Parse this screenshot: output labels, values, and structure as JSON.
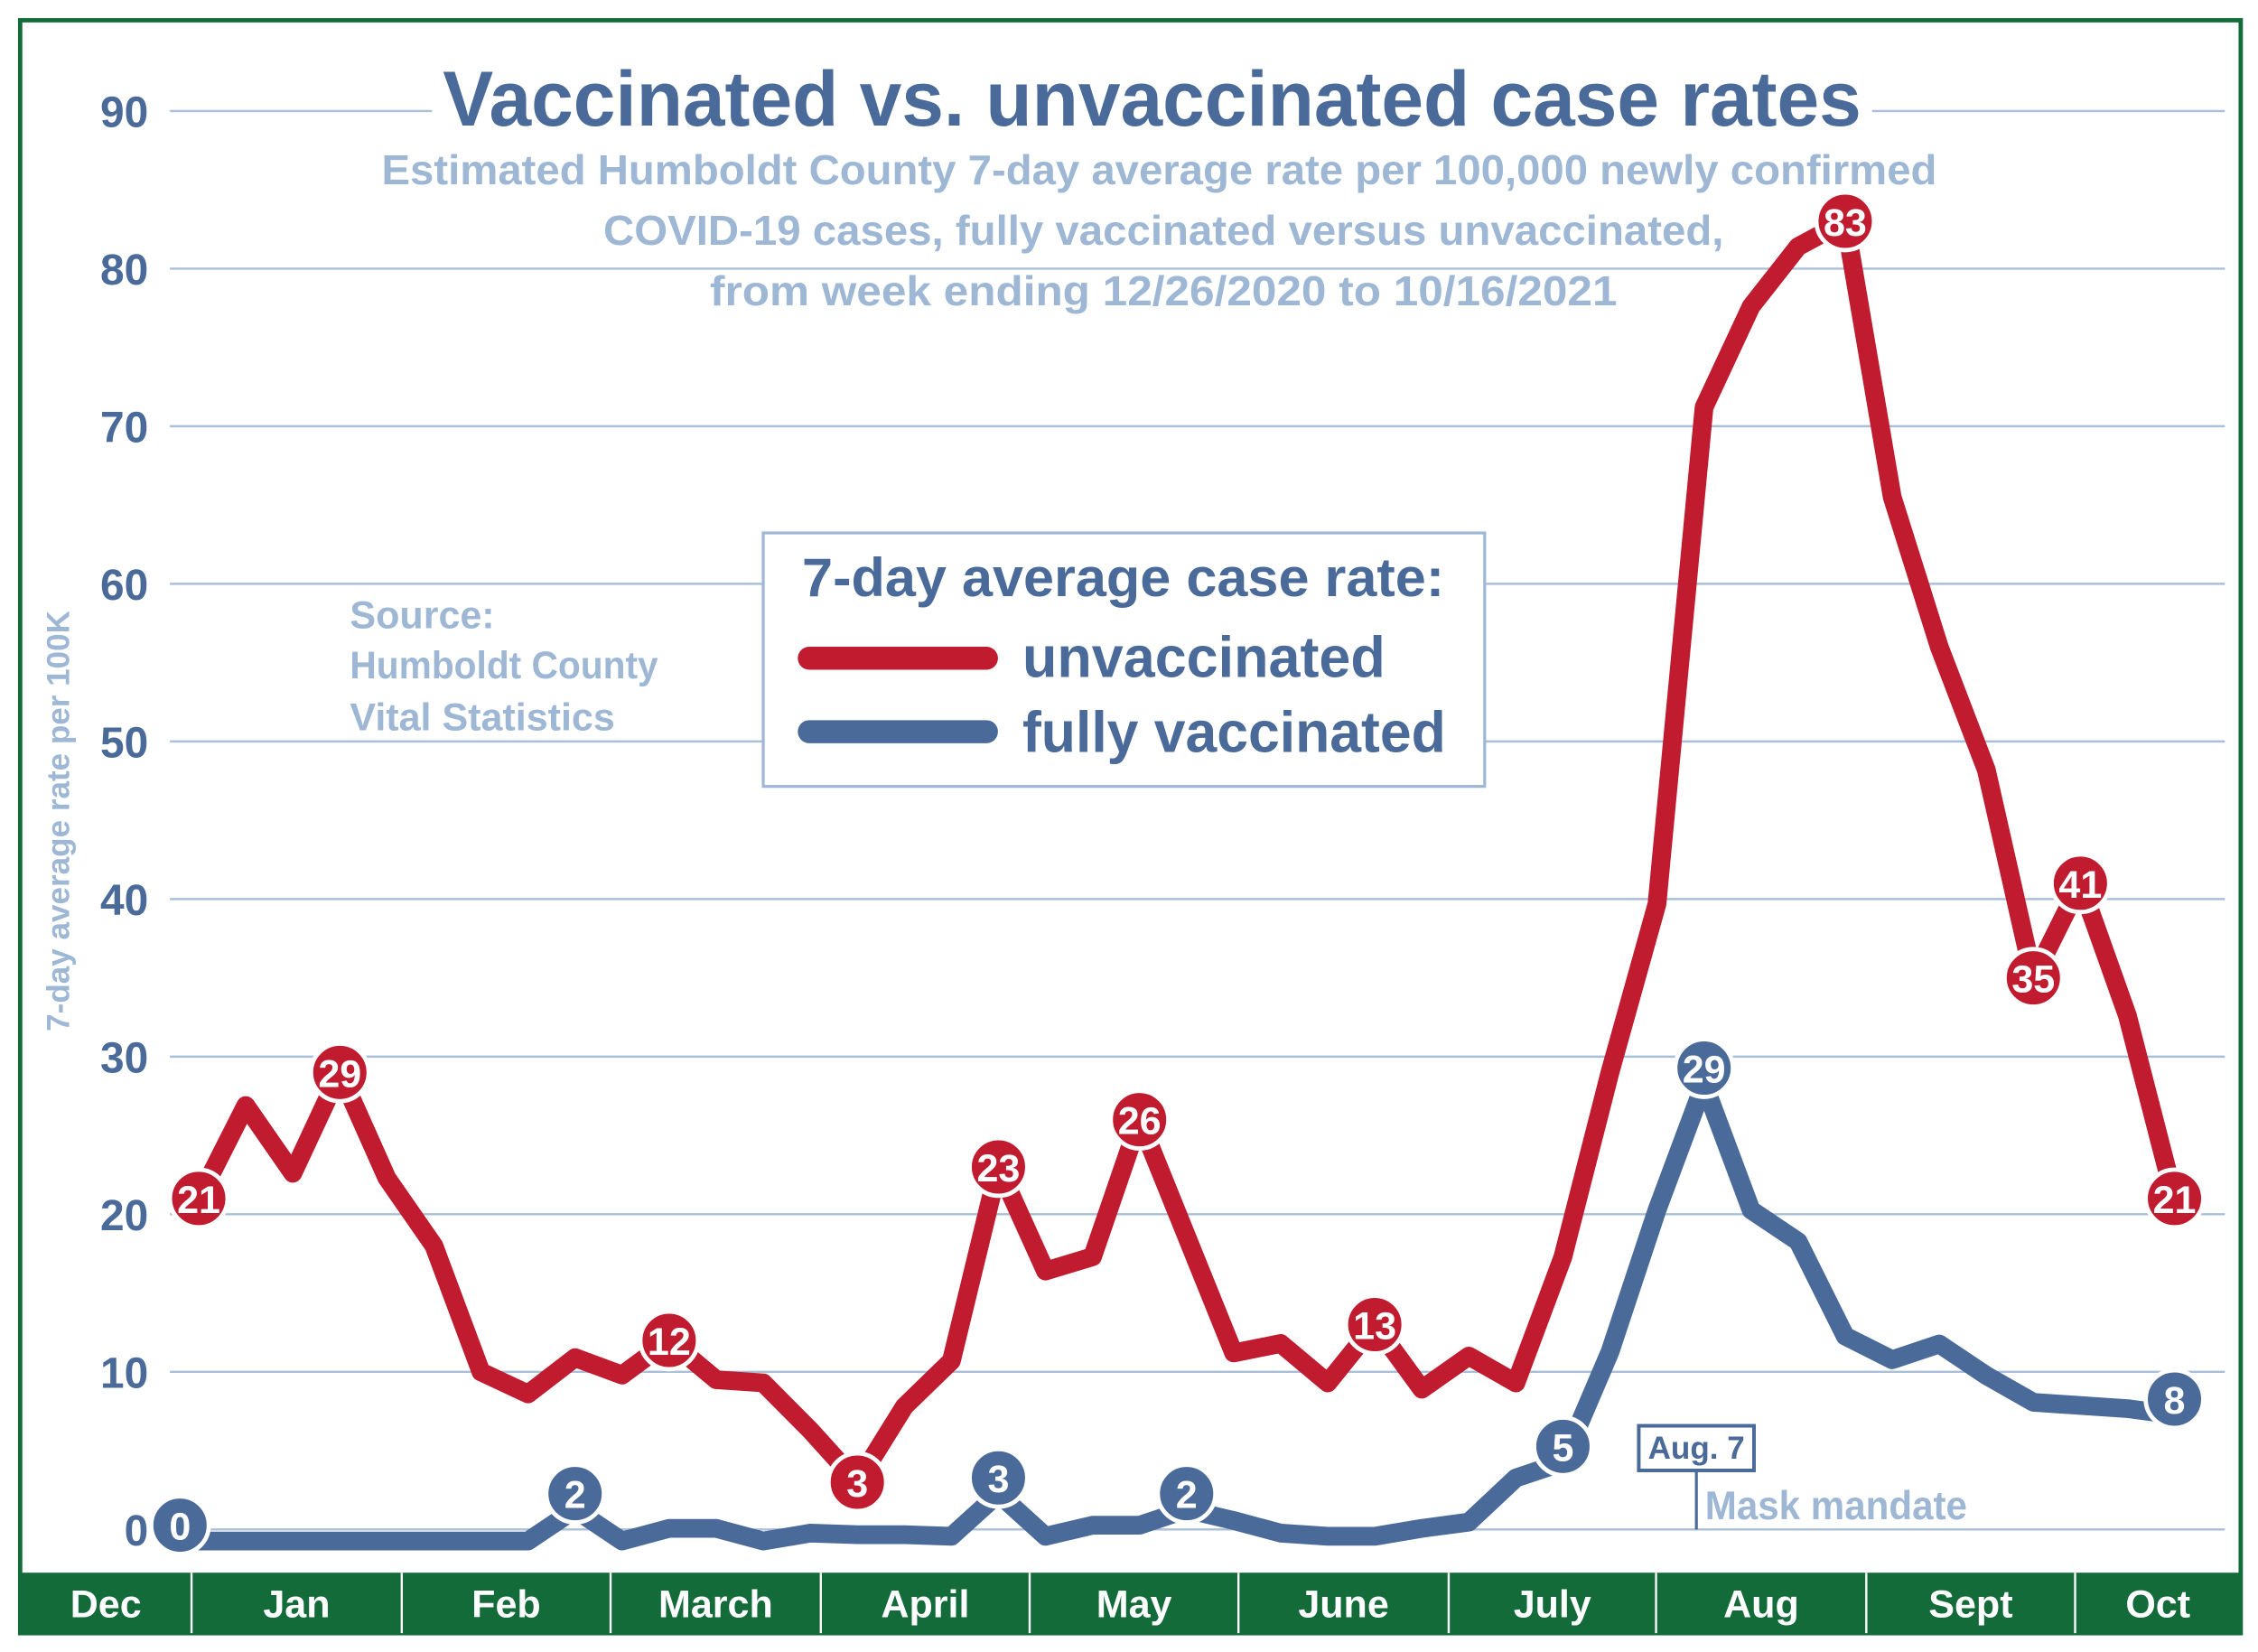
{
  "colors": {
    "border": "#146b3a",
    "unvaccinated": "#c01b2e",
    "vaccinated": "#4a6a9a",
    "grid": "#a9bfd8",
    "subtitle": "#9db7d5",
    "axis_label": "#9db7d5",
    "tick": "#4a6a9a"
  },
  "chart_data": {
    "type": "line",
    "title": "Vaccinated vs. unvaccinated case rates",
    "subtitle": [
      "Estimated Humboldt County 7-day average rate per 100,000 newly confirmed",
      "COVID-19 cases,  fully vaccinated versus unvaccinated,",
      "from week ending 12/26/2020 to 10/16/2021"
    ],
    "ylabel": "7-day average rate per 100K",
    "ylim": [
      0,
      90
    ],
    "yticks": [
      "0",
      "10",
      "20",
      "30",
      "40",
      "50",
      "60",
      "70",
      "80",
      "90"
    ],
    "grid": true,
    "x_month_labels": [
      "Dec",
      "Jan",
      "Feb",
      "March",
      "April",
      "May",
      "June",
      "July",
      "Aug",
      "Sept",
      "Oct"
    ],
    "source": [
      "Source:",
      "Humboldt County",
      "Vital Statistics"
    ],
    "legend": {
      "title": "7-day average case rate:",
      "placement": "center"
    },
    "annotation": {
      "date": "Aug. 7",
      "text": "Mask mandate"
    },
    "series": [
      {
        "name": "unvaccinated",
        "color": "#c01b2e",
        "values": [
          21,
          26.9,
          22.6,
          29,
          22.3,
          18,
          10,
          8.6,
          10.9,
          9.8,
          12,
          9.5,
          9.3,
          6.3,
          3,
          7.8,
          10.7,
          23,
          16.4,
          17.3,
          26,
          18.6,
          11.2,
          11.8,
          9.3,
          13,
          8.9,
          11,
          9.3,
          17.3,
          29,
          39.7,
          71.2,
          77.6,
          81.4,
          83,
          65.5,
          56,
          48.2,
          35,
          41,
          32.6,
          21
        ],
        "labels": {
          "0": "21",
          "3": "29",
          "10": "12",
          "14": "3",
          "17": "23",
          "20": "26",
          "25": "13",
          "35": "83",
          "39": "35",
          "40": "41",
          "42": "21"
        }
      },
      {
        "name": "fully vaccinated",
        "color": "#4a6a9a",
        "values": [
          0,
          0,
          0,
          0,
          0,
          0,
          0,
          0,
          2,
          0,
          0.8,
          0.8,
          0,
          0.5,
          0.4,
          0.4,
          0.3,
          3,
          0.3,
          1,
          1,
          2,
          1.3,
          0.5,
          0.3,
          0.3,
          0.8,
          1.2,
          4,
          5,
          12,
          21,
          29,
          21,
          19,
          13,
          11.5,
          12.5,
          10.5,
          8.8,
          8.6,
          8.4,
          8
        ],
        "labels": {
          "0": "0",
          "8": "2",
          "17": "3",
          "21": "2",
          "29": "5",
          "32": "29",
          "42": "8"
        }
      }
    ]
  }
}
